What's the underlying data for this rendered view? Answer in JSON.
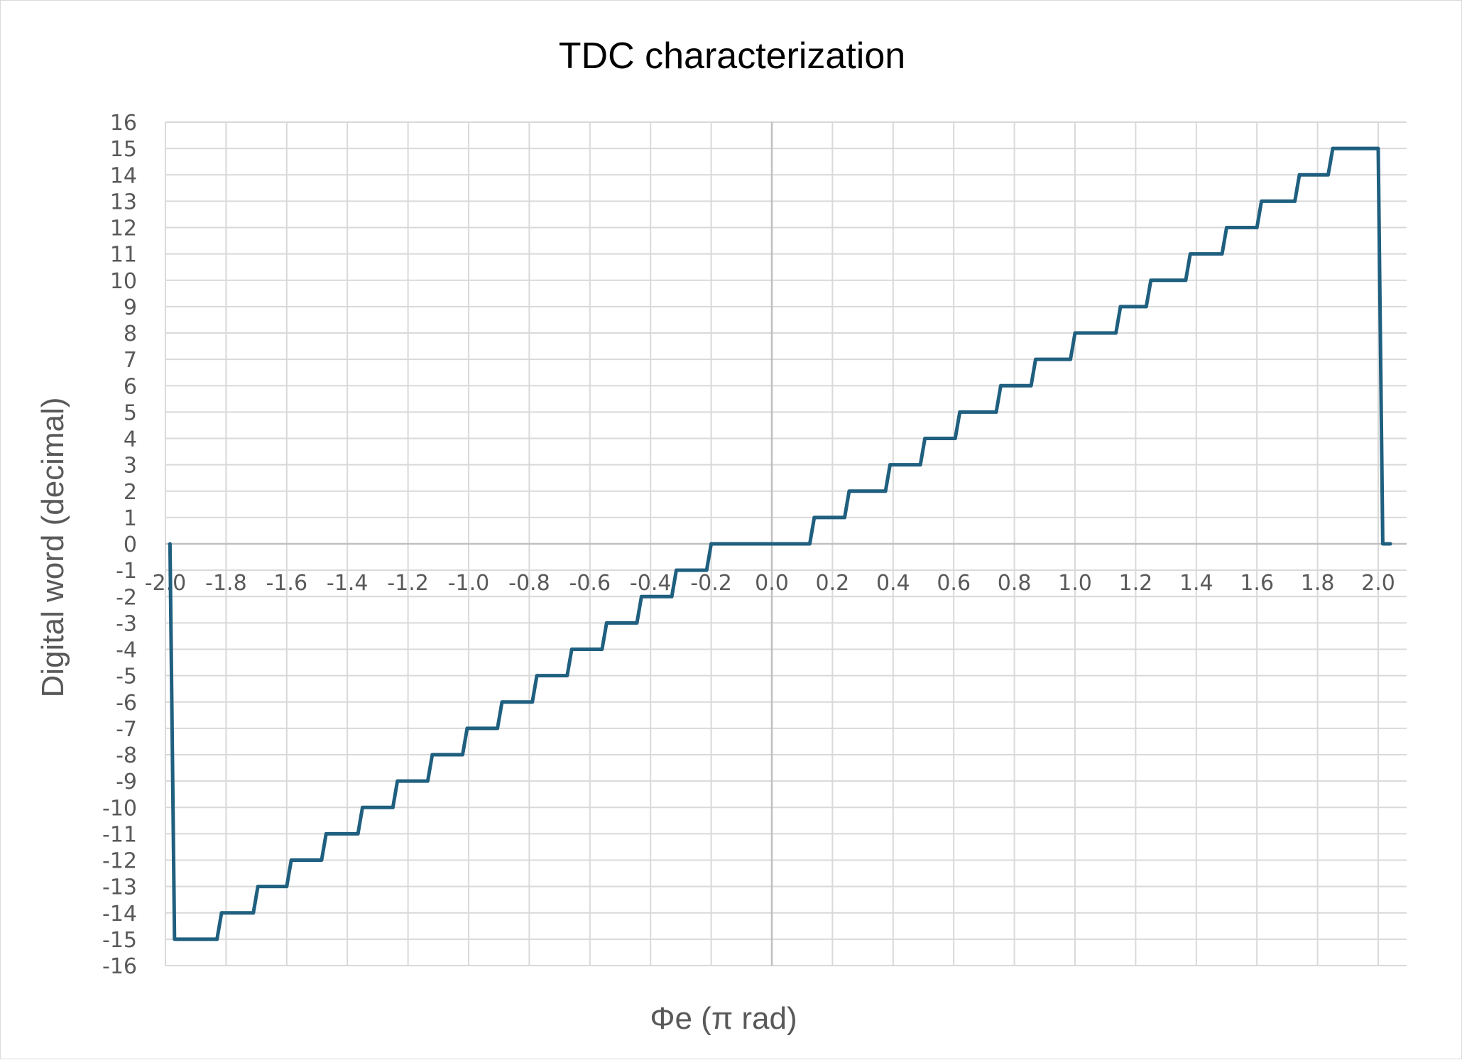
{
  "chart_data": {
    "type": "line",
    "title": "TDC characterization",
    "xlabel": "Φe (π rad)",
    "ylabel": "Digital word (decimal)",
    "xlim": [
      -2.0,
      2.05
    ],
    "ylim": [
      -16,
      16
    ],
    "x_ticks": [
      "-2.0",
      "-1.8",
      "-1.6",
      "-1.4",
      "-1.2",
      "-1.0",
      "-0.8",
      "-0.6",
      "-0.4",
      "-0.2",
      "0.0",
      "0.2",
      "0.4",
      "0.6",
      "0.8",
      "1.0",
      "1.2",
      "1.4",
      "1.6",
      "1.8",
      "2.0"
    ],
    "y_ticks": [
      "-16",
      "-15",
      "-14",
      "-13",
      "-12",
      "-11",
      "-10",
      "-9",
      "-8",
      "-7",
      "-6",
      "-5",
      "-4",
      "-3",
      "-2",
      "-1",
      "0",
      "1",
      "2",
      "3",
      "4",
      "5",
      "6",
      "7",
      "8",
      "9",
      "10",
      "11",
      "12",
      "13",
      "14",
      "15",
      "16"
    ],
    "grid": true,
    "line_color": "#1f5f7f",
    "series": [
      {
        "points": [
          [
            -1.985,
            0
          ],
          [
            -1.97,
            -15
          ],
          [
            -1.83,
            -15
          ],
          [
            -1.815,
            -14
          ],
          [
            -1.71,
            -14
          ],
          [
            -1.695,
            -13
          ],
          [
            -1.6,
            -13
          ],
          [
            -1.585,
            -12
          ],
          [
            -1.485,
            -12
          ],
          [
            -1.47,
            -11
          ],
          [
            -1.365,
            -11
          ],
          [
            -1.35,
            -10
          ],
          [
            -1.25,
            -10
          ],
          [
            -1.235,
            -9
          ],
          [
            -1.135,
            -9
          ],
          [
            -1.12,
            -8
          ],
          [
            -1.02,
            -8
          ],
          [
            -1.005,
            -7
          ],
          [
            -0.905,
            -7
          ],
          [
            -0.89,
            -6
          ],
          [
            -0.79,
            -6
          ],
          [
            -0.775,
            -5
          ],
          [
            -0.675,
            -5
          ],
          [
            -0.66,
            -4
          ],
          [
            -0.56,
            -4
          ],
          [
            -0.545,
            -3
          ],
          [
            -0.445,
            -3
          ],
          [
            -0.43,
            -2
          ],
          [
            -0.33,
            -2
          ],
          [
            -0.315,
            -1
          ],
          [
            -0.215,
            -1
          ],
          [
            -0.2,
            0
          ],
          [
            0.125,
            0
          ],
          [
            0.14,
            1
          ],
          [
            0.24,
            1
          ],
          [
            0.255,
            2
          ],
          [
            0.375,
            2
          ],
          [
            0.39,
            3
          ],
          [
            0.49,
            3
          ],
          [
            0.505,
            4
          ],
          [
            0.605,
            4
          ],
          [
            0.62,
            5
          ],
          [
            0.74,
            5
          ],
          [
            0.755,
            6
          ],
          [
            0.855,
            6
          ],
          [
            0.87,
            7
          ],
          [
            0.985,
            7
          ],
          [
            1.0,
            8
          ],
          [
            1.135,
            8
          ],
          [
            1.15,
            9
          ],
          [
            1.235,
            9
          ],
          [
            1.25,
            10
          ],
          [
            1.365,
            10
          ],
          [
            1.38,
            11
          ],
          [
            1.485,
            11
          ],
          [
            1.5,
            12
          ],
          [
            1.6,
            12
          ],
          [
            1.615,
            13
          ],
          [
            1.725,
            13
          ],
          [
            1.74,
            14
          ],
          [
            1.835,
            14
          ],
          [
            1.85,
            15
          ],
          [
            2.0,
            15
          ],
          [
            2.015,
            0
          ],
          [
            2.04,
            0
          ]
        ]
      }
    ]
  }
}
